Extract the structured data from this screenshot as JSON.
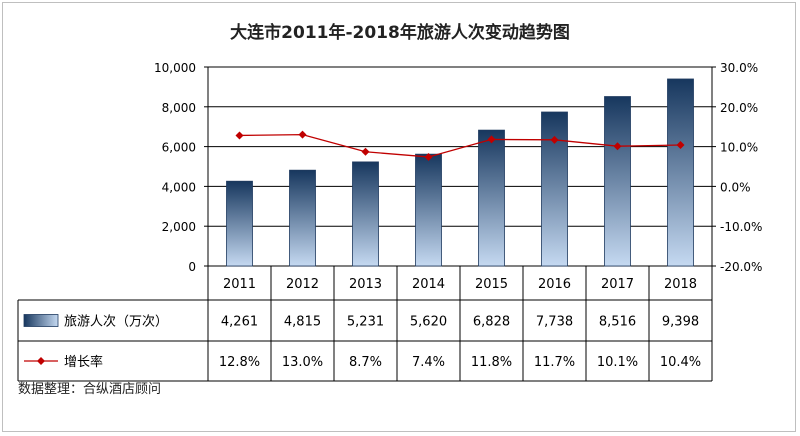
{
  "chart_data": {
    "type": "bar",
    "title": "大连市2011年-2018年旅游人次变动趋势图",
    "categories": [
      "2011",
      "2012",
      "2013",
      "2014",
      "2015",
      "2016",
      "2017",
      "2018"
    ],
    "series": [
      {
        "name": "旅游人次（万次）",
        "type": "bar",
        "axis": "left",
        "values": [
          4261,
          4815,
          5231,
          5620,
          6828,
          7738,
          8516,
          9398
        ],
        "labels": [
          "4,261",
          "4,815",
          "5,231",
          "5,620",
          "6,828",
          "7,738",
          "8,516",
          "9,398"
        ]
      },
      {
        "name": "增长率",
        "type": "line",
        "axis": "right",
        "values": [
          12.8,
          13.0,
          8.7,
          7.4,
          11.8,
          11.7,
          10.1,
          10.4
        ],
        "labels": [
          "12.8%",
          "13.0%",
          "8.7%",
          "7.4%",
          "11.8%",
          "11.7%",
          "10.1%",
          "10.4%"
        ]
      }
    ],
    "y_left": {
      "ylim": [
        0,
        10000
      ],
      "ticks": [
        "0",
        "2,000",
        "4,000",
        "6,000",
        "8,000",
        "10,000"
      ],
      "tick_values": [
        0,
        2000,
        4000,
        6000,
        8000,
        10000
      ]
    },
    "y_right": {
      "ylim": [
        -20,
        30
      ],
      "ticks": [
        "-20.0%",
        "-10.0%",
        "0.0%",
        "10.0%",
        "20.0%",
        "30.0%"
      ],
      "tick_values": [
        -20,
        -10,
        0,
        10,
        20,
        30
      ]
    },
    "grid": true,
    "legend": "data-table-left",
    "colors": {
      "bar_dark": "#17375e",
      "bar_light": "#c5d9f1",
      "line": "#c00000"
    }
  },
  "footnote": "数据整理：合纵酒店顾问"
}
